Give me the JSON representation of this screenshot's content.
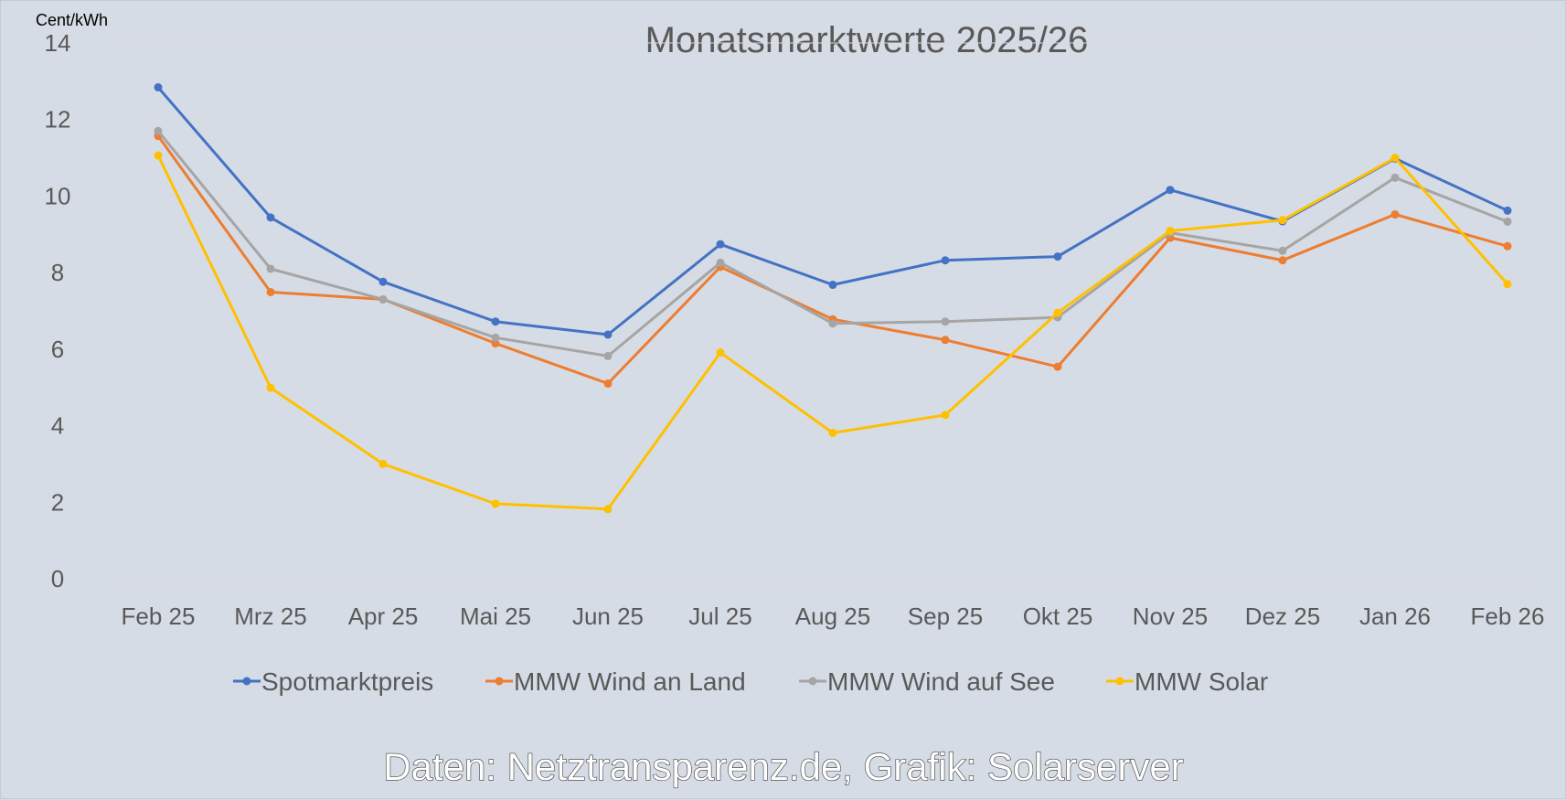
{
  "chart_data": {
    "type": "line",
    "title": "Monatsmarktwerte 2025/26",
    "ylabel": "Cent/kWh",
    "ylim": [
      0,
      14
    ],
    "yticks": [
      "0",
      "2",
      "4",
      "6",
      "8",
      "10",
      "12",
      "14"
    ],
    "grid": true,
    "legend_position": "bottom",
    "categories": [
      "Feb 25",
      "Mrz 25",
      "Apr 25",
      "Mai 25",
      "Jun 25",
      "Jul 25",
      "Aug 25",
      "Sep 25",
      "Okt 25",
      "Nov 25",
      "Dez 25",
      "Jan 26",
      "Feb 26"
    ],
    "series": [
      {
        "name": "Spotmarktpreis",
        "color": "#4472c4",
        "values": [
          12.84,
          9.44,
          7.76,
          6.72,
          6.38,
          8.74,
          7.68,
          8.32,
          8.42,
          10.16,
          9.34,
          10.98,
          9.62
        ]
      },
      {
        "name": "MMW Wind an Land",
        "color": "#ed7d31",
        "values": [
          11.57,
          7.49,
          7.3,
          6.15,
          5.1,
          8.15,
          6.78,
          6.24,
          5.54,
          8.91,
          8.32,
          9.52,
          8.69
        ]
      },
      {
        "name": "MMW Wind auf See",
        "color": "#a5a5a5",
        "values": [
          11.7,
          8.1,
          7.3,
          6.3,
          5.82,
          8.26,
          6.67,
          6.72,
          6.83,
          9.04,
          8.57,
          10.48,
          9.33
        ]
      },
      {
        "name": "MMW Solar",
        "color": "#ffc000",
        "values": [
          11.06,
          4.99,
          3.0,
          1.96,
          1.82,
          5.91,
          3.81,
          4.28,
          6.95,
          9.09,
          9.37,
          11.0,
          7.7
        ]
      }
    ]
  },
  "credit": "Daten: Netztransparenz.de, Grafik: Solarserver"
}
